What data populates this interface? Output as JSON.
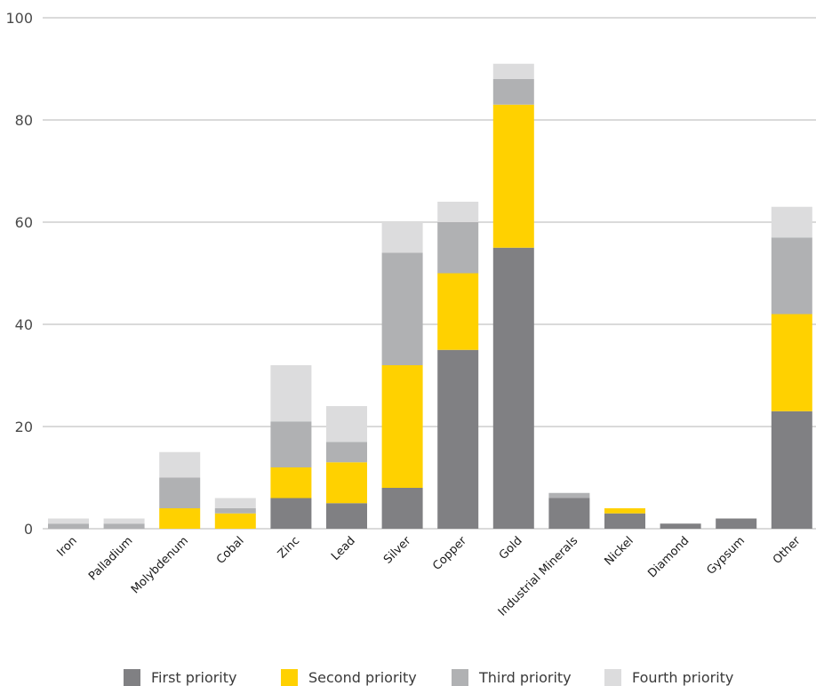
{
  "chart_data": {
    "type": "bar",
    "stacked": true,
    "categories": [
      "Iron",
      "Palladium",
      "Molybdenum",
      "Cobal",
      "Zinc",
      "Lead",
      "Silver",
      "Copper",
      "Gold",
      "Industrial Minerals",
      "Nickel",
      "Diamond",
      "Gypsum",
      "Other"
    ],
    "series": [
      {
        "name": "First priority",
        "color": "#808083",
        "values": [
          0,
          0,
          0,
          0,
          6,
          5,
          8,
          35,
          55,
          6,
          3,
          1,
          2,
          23
        ]
      },
      {
        "name": "Second priority",
        "color": "#ffd100",
        "values": [
          0,
          0,
          4,
          3,
          6,
          8,
          24,
          15,
          28,
          0,
          1,
          0,
          0,
          19
        ]
      },
      {
        "name": "Third priority",
        "color": "#b0b1b3",
        "values": [
          1,
          1,
          6,
          1,
          9,
          4,
          22,
          10,
          5,
          1,
          0,
          0,
          0,
          15
        ]
      },
      {
        "name": "Fourth priority",
        "color": "#dcdcdd",
        "values": [
          1,
          1,
          5,
          2,
          11,
          7,
          6,
          4,
          3,
          0,
          0,
          0,
          0,
          6
        ]
      }
    ],
    "yticks": [
      0,
      20,
      40,
      60,
      80,
      100
    ],
    "ylim": [
      0,
      100
    ],
    "xlabel": "",
    "ylabel": "",
    "grid": true,
    "legend_position": "bottom"
  }
}
